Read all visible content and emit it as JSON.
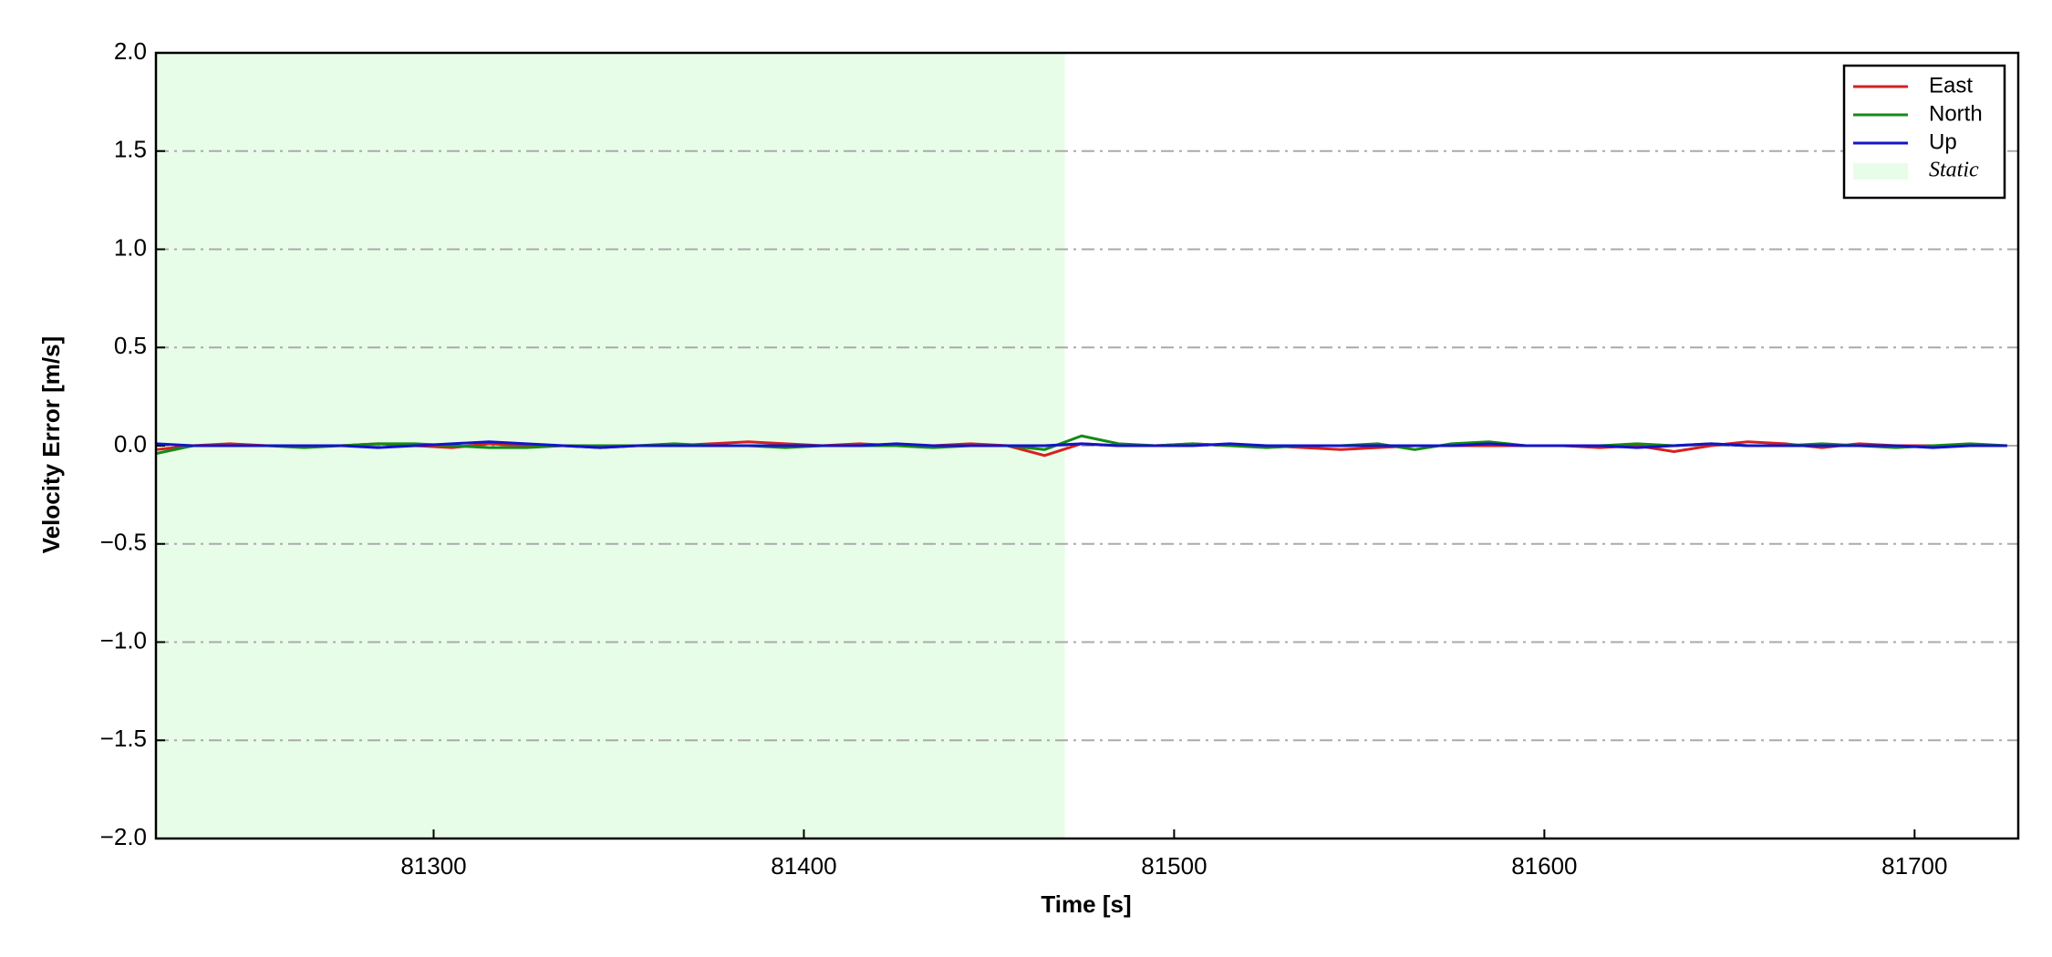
{
  "chart_data": {
    "type": "line",
    "xlabel": "Time [s]",
    "ylabel": "Velocity Error [m/s]",
    "x": [
      81225,
      81235,
      81245,
      81255,
      81265,
      81275,
      81285,
      81295,
      81305,
      81315,
      81325,
      81335,
      81345,
      81355,
      81365,
      81375,
      81385,
      81395,
      81405,
      81415,
      81425,
      81435,
      81445,
      81455,
      81465,
      81475,
      81485,
      81495,
      81505,
      81515,
      81525,
      81535,
      81545,
      81555,
      81565,
      81575,
      81585,
      81595,
      81605,
      81615,
      81625,
      81635,
      81645,
      81655,
      81665,
      81675,
      81685,
      81695,
      81705,
      81715,
      81725
    ],
    "series": [
      {
        "name": "East",
        "color": "#d62020",
        "values": [
          -0.02,
          0,
          0.01,
          0,
          0,
          0,
          0.01,
          0,
          -0.01,
          0.01,
          0,
          0,
          -0.01,
          0,
          0,
          0.01,
          0.02,
          0.01,
          0,
          0.01,
          0,
          0,
          0.01,
          0,
          -0.05,
          0.01,
          0,
          0,
          0.01,
          0,
          0,
          -0.01,
          -0.02,
          -0.01,
          0,
          0,
          0,
          0,
          0,
          -0.01,
          0,
          -0.03,
          0,
          0.02,
          0.01,
          -0.01,
          0.01,
          0,
          0,
          0,
          0
        ]
      },
      {
        "name": "North",
        "color": "#158a15",
        "values": [
          -0.04,
          0,
          0,
          0,
          -0.01,
          0,
          0.01,
          0.01,
          0,
          -0.01,
          -0.01,
          0,
          0,
          0,
          0.01,
          0,
          0,
          -0.01,
          0,
          0,
          0,
          -0.01,
          0,
          0,
          -0.02,
          0.05,
          0.01,
          0,
          0.01,
          0,
          -0.01,
          0,
          0,
          0.01,
          -0.02,
          0.01,
          0.02,
          0,
          0,
          0,
          0.01,
          0,
          0.01,
          0,
          0,
          0.01,
          0,
          -0.01,
          0,
          0.01,
          0
        ]
      },
      {
        "name": "Up",
        "color": "#1414c8",
        "values": [
          0.01,
          0,
          0,
          0,
          0,
          0,
          -0.01,
          0,
          0.01,
          0.02,
          0.01,
          0,
          -0.01,
          0,
          0,
          0,
          0,
          0,
          0,
          0,
          0.01,
          0,
          0,
          0,
          0,
          0.01,
          0,
          0,
          0,
          0.01,
          0,
          0,
          0,
          0,
          0,
          0,
          0.01,
          0,
          0,
          0,
          -0.01,
          0,
          0.01,
          0,
          0,
          0,
          0,
          0,
          -0.01,
          0,
          0
        ]
      }
    ],
    "static_region": {
      "name": "Static",
      "xstart": 81225,
      "xend": 81470.5,
      "color": "#e8fde8"
    },
    "xlim": [
      81225,
      81728
    ],
    "xticks": [
      81300,
      81400,
      81500,
      81600,
      81700
    ],
    "ylim": [
      -2,
      2
    ],
    "yticks": [
      {
        "value": -2,
        "label": "−2.0"
      },
      {
        "value": -1.5,
        "label": "−1.5"
      },
      {
        "value": -1,
        "label": "−1.0"
      },
      {
        "value": -0.5,
        "label": "−0.5"
      },
      {
        "value": 0,
        "label": "0.0"
      },
      {
        "value": 0.5,
        "label": "0.5"
      },
      {
        "value": 1,
        "label": "1.0"
      },
      {
        "value": 1.5,
        "label": "1.5"
      },
      {
        "value": 2,
        "label": "2.0"
      }
    ],
    "grid": true,
    "legend": "upper right"
  }
}
